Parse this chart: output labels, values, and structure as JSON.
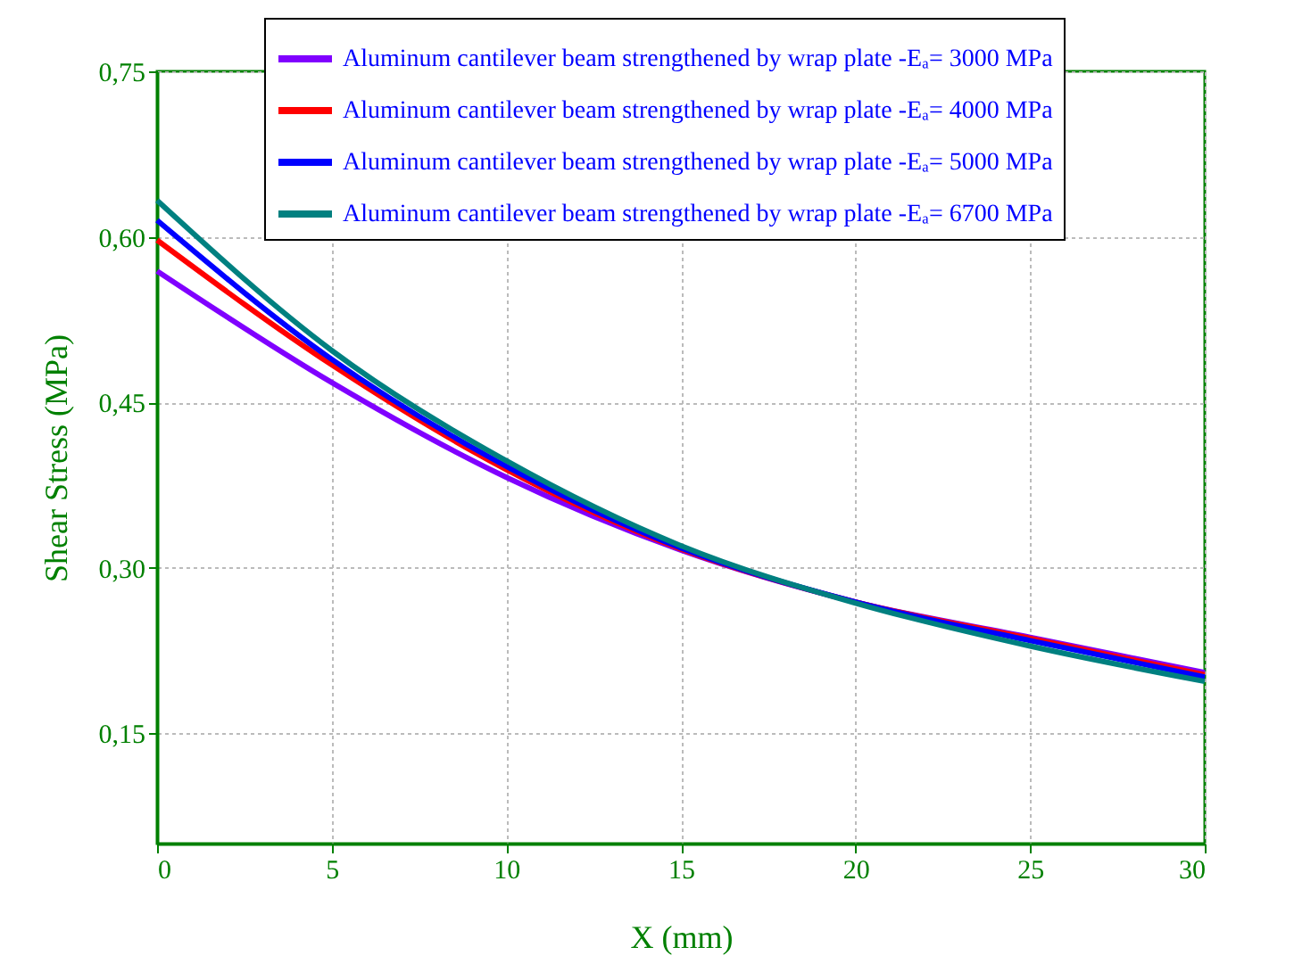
{
  "chart_data": {
    "type": "line",
    "xlabel": "X (mm)",
    "ylabel": "Shear Stress (MPa)",
    "x": [
      0,
      5,
      10,
      15,
      20,
      25,
      30
    ],
    "series": [
      {
        "name": "Aluminum cantilever beam strengthened by wrap plate -Eₐ= 3000 MPa",
        "color": "#8000ff",
        "values": [
          0.569,
          0.468,
          0.382,
          0.316,
          0.269,
          0.237,
          0.205
        ]
      },
      {
        "name": "Aluminum cantilever beam strengthened by wrap plate -Eₐ= 4000 MPa",
        "color": "#ff0000",
        "values": [
          0.597,
          0.484,
          0.389,
          0.317,
          0.269,
          0.236,
          0.203
        ]
      },
      {
        "name": "Aluminum cantilever beam strengthened by wrap plate -Eₐ= 5000 MPa",
        "color": "#0000ff",
        "values": [
          0.615,
          0.489,
          0.392,
          0.318,
          0.269,
          0.234,
          0.201
        ]
      },
      {
        "name": "Aluminum cantilever beam strengthened by wrap plate -Eₐ= 6700 MPa",
        "color": "#008080",
        "values": [
          0.633,
          0.497,
          0.397,
          0.32,
          0.268,
          0.229,
          0.197
        ]
      }
    ],
    "xlim": [
      0,
      30
    ],
    "xticks": [
      0,
      5,
      10,
      15,
      20,
      25,
      30
    ],
    "ylim": [
      0.05,
      0.75
    ],
    "yticks": [
      {
        "value": 0.15,
        "label": "0,15"
      },
      {
        "value": 0.3,
        "label": "0,30"
      },
      {
        "value": 0.45,
        "label": "0,45"
      },
      {
        "value": 0.6,
        "label": "0,60"
      },
      {
        "value": 0.75,
        "label": "0,75"
      }
    ],
    "grid": true,
    "legend": "top right",
    "marker": "none",
    "line_style": "solid"
  }
}
